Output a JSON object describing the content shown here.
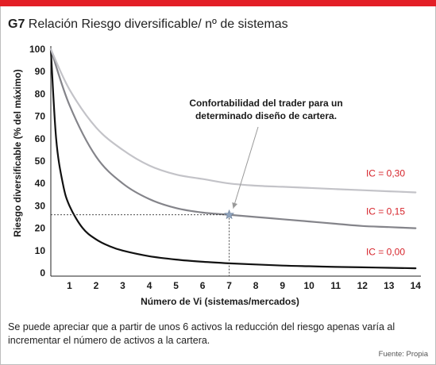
{
  "header": {
    "code": "G7",
    "title": "Relación Riesgo diversificable/ nº de sistemas"
  },
  "caption": "Se puede apreciar que a partir de unos 6 activos la reducción del riesgo apenas varía al incrementar el número de activos a la cartera.",
  "source": "Fuente: Propia",
  "colors": {
    "accent_bar": "#e31f26",
    "series_label": "#d6232a",
    "ic0": "#111111",
    "ic015": "#84848a",
    "ic030": "#c3c3c8",
    "marker": "#8fa3bd"
  },
  "chart_data": {
    "type": "line",
    "xlabel": "Número de Vi (sistemas/mercados)",
    "ylabel": "Riesgo diversificable (% del máximo)",
    "xticks": [
      1,
      2,
      3,
      4,
      5,
      6,
      7,
      8,
      9,
      10,
      11,
      12,
      13,
      14
    ],
    "yticks": [
      0,
      10,
      20,
      30,
      40,
      50,
      60,
      70,
      80,
      90,
      100
    ],
    "xlim": [
      0.3,
      14.2
    ],
    "ylim": [
      0,
      100
    ],
    "grid": false,
    "series": [
      {
        "name": "IC = 0,00",
        "x": [
          0.3,
          0.5,
          0.75,
          1,
          1.5,
          2,
          2.5,
          3,
          4,
          5,
          6,
          7,
          8,
          9,
          10,
          11,
          12,
          13,
          14
        ],
        "y": [
          100,
          60,
          40,
          30,
          20,
          15,
          12,
          10,
          7.5,
          6,
          5,
          4.3,
          3.8,
          3.3,
          3,
          2.7,
          2.5,
          2.3,
          2.1
        ]
      },
      {
        "name": "IC = 0,15",
        "x": [
          0.3,
          1,
          2,
          3,
          4,
          5,
          6,
          7,
          8,
          9,
          10,
          11,
          12,
          13,
          14
        ],
        "y": [
          100,
          75,
          52,
          40,
          33,
          29,
          27,
          26,
          25,
          24,
          23,
          22,
          21,
          20.5,
          20
        ]
      },
      {
        "name": "IC = 0,30",
        "x": [
          0.3,
          1,
          2,
          3,
          4,
          5,
          6,
          7,
          8,
          9,
          10,
          11,
          12,
          13,
          14
        ],
        "y": [
          100,
          82,
          65,
          55,
          48,
          44,
          42,
          40,
          39,
          38.5,
          38,
          37.5,
          37,
          36.5,
          36
        ]
      }
    ],
    "annotations": {
      "text_line1": "Confortabilidad del trader para un",
      "text_line2": "determinado diseño de cartera.",
      "point": {
        "x": 7,
        "y": 26
      }
    }
  }
}
